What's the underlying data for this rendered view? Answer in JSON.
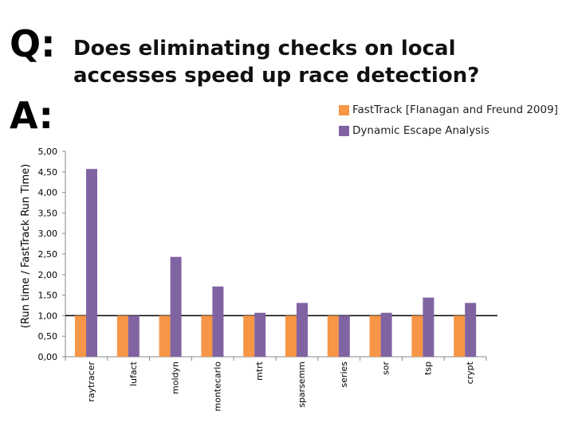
{
  "heading": {
    "q": "Q:",
    "a": "A:",
    "question": "Does eliminating checks on local accesses speed up race detection?"
  },
  "colors": {
    "series1": "#f79646",
    "series2": "#8064a2",
    "baseline": "#000000"
  },
  "chart_data": {
    "type": "bar",
    "categories": [
      "raytracer",
      "lufact",
      "moldyn",
      "montecarlo",
      "mtrt",
      "sparsemm",
      "series",
      "sor",
      "tsp",
      "crypt"
    ],
    "series": [
      {
        "name": "FastTrack [Flanagan and Freund 2009]",
        "values": [
          1.0,
          1.0,
          1.0,
          1.0,
          1.0,
          1.0,
          1.0,
          1.0,
          1.0,
          1.0
        ]
      },
      {
        "name": "Dynamic Escape Analysis",
        "values": [
          4.57,
          1.0,
          2.43,
          1.71,
          1.07,
          1.31,
          1.0,
          1.07,
          1.44,
          1.31
        ]
      }
    ],
    "ylabel": "(Run time / FastTrack Run Time)",
    "xlabel": "",
    "ylim": [
      0,
      5
    ],
    "yticks": [
      "0,00",
      "0,50",
      "1,00",
      "1,50",
      "2,00",
      "2,50",
      "3,00",
      "3,50",
      "4,00",
      "4,50",
      "5,00"
    ],
    "reference_line": 1.0,
    "legend_position": "top-right"
  }
}
